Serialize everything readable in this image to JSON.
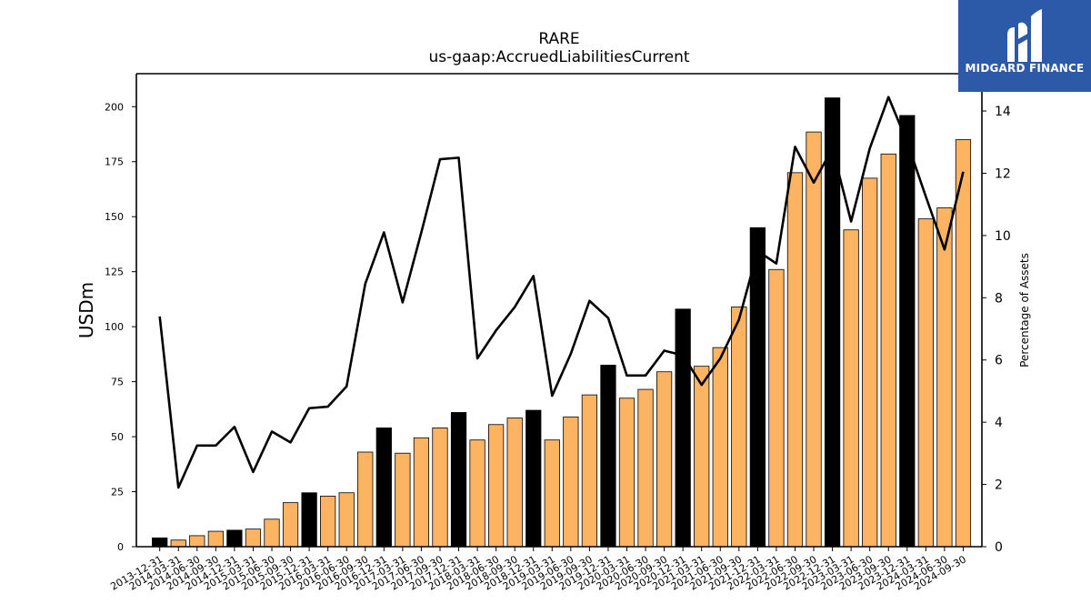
{
  "chart_data": {
    "type": "bar",
    "title": "RARE",
    "subtitle": "us-gaap:AccruedLiabilitiesCurrent",
    "ylabel": "USDm",
    "y2label": "Percentage of Assets",
    "ylim": [
      0,
      215
    ],
    "y2lim": [
      0,
      15.2
    ],
    "yticks": [
      0,
      25,
      50,
      75,
      100,
      125,
      150,
      175,
      200
    ],
    "y2ticks": [
      0,
      2,
      4,
      6,
      8,
      10,
      12,
      14
    ],
    "categories": [
      "2013-12-31",
      "2014-03-31",
      "2014-06-30",
      "2014-09-30",
      "2014-12-31",
      "2015-03-31",
      "2015-06-30",
      "2015-09-30",
      "2015-12-31",
      "2016-03-31",
      "2016-06-30",
      "2016-09-30",
      "2016-12-31",
      "2017-03-31",
      "2017-06-30",
      "2017-09-30",
      "2017-12-31",
      "2018-03-31",
      "2018-06-30",
      "2018-09-30",
      "2018-12-31",
      "2019-03-31",
      "2019-06-30",
      "2019-09-30",
      "2019-12-31",
      "2020-03-31",
      "2020-06-30",
      "2020-09-30",
      "2020-12-31",
      "2021-03-31",
      "2021-06-30",
      "2021-09-30",
      "2021-12-31",
      "2022-03-31",
      "2022-06-30",
      "2022-09-30",
      "2022-12-31",
      "2023-03-31",
      "2023-06-30",
      "2023-09-30",
      "2023-12-31",
      "2024-03-31",
      "2024-06-30",
      "2024-09-30"
    ],
    "series": [
      {
        "type": "bar",
        "values": [
          4,
          3,
          5,
          7,
          7.5,
          8,
          12.5,
          20,
          24.5,
          23,
          24.5,
          43,
          54,
          42.5,
          49.5,
          54,
          61,
          48.5,
          55.5,
          58.5,
          62,
          48.5,
          59,
          69,
          82.5,
          67.5,
          71.5,
          79.5,
          108,
          82,
          90.5,
          109,
          145,
          126,
          170,
          188.5,
          204,
          144,
          167.5,
          178.5,
          196,
          149,
          154,
          185
        ]
      },
      {
        "type": "line",
        "axis": "right",
        "values": [
          7.4,
          1.9,
          3.25,
          3.25,
          3.85,
          2.4,
          3.7,
          3.35,
          4.45,
          4.5,
          5.15,
          8.45,
          10.1,
          7.85,
          10.1,
          12.45,
          12.5,
          6.05,
          6.95,
          7.7,
          8.7,
          4.85,
          6.2,
          7.9,
          7.35,
          5.5,
          5.5,
          6.3,
          6.15,
          5.2,
          6.05,
          7.3,
          9.5,
          9.1,
          12.85,
          11.7,
          12.8,
          10.45,
          12.8,
          14.45,
          13.0,
          11.25,
          9.55,
          12.05
        ]
      }
    ],
    "colors": {
      "bar": "#fdb462",
      "bar_year_end": "#000000",
      "line": "#000000",
      "bar_edge": "#000000"
    },
    "grid": false
  },
  "logo": {
    "text": "MIDGARD FINANCE",
    "bg": "#2d5aa8"
  }
}
